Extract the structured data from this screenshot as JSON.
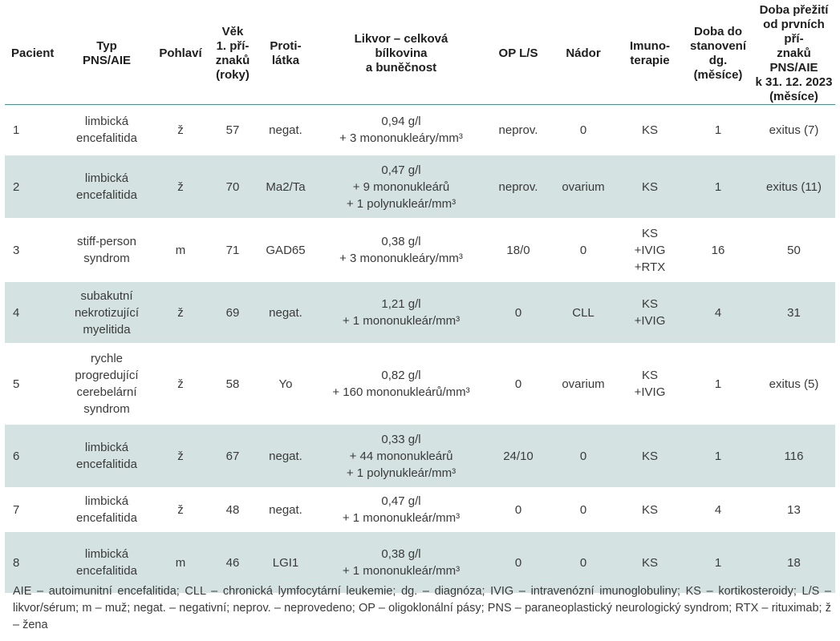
{
  "headers": [
    {
      "key": "patient",
      "lines": [
        "Pacient"
      ]
    },
    {
      "key": "type",
      "lines": [
        "Typ",
        "PNS/AIE"
      ]
    },
    {
      "key": "sex",
      "lines": [
        "Pohlaví"
      ]
    },
    {
      "key": "age",
      "lines": [
        "Věk",
        "1. pří-",
        "znaků",
        "(roky)"
      ]
    },
    {
      "key": "antibody",
      "lines": [
        "Proti-",
        "látka"
      ]
    },
    {
      "key": "csf",
      "lines": [
        "Likvor – celková",
        "bílkovina",
        "a buněčnost"
      ]
    },
    {
      "key": "ob",
      "lines": [
        "OP L/S"
      ]
    },
    {
      "key": "tumor",
      "lines": [
        "Nádor"
      ]
    },
    {
      "key": "immuno",
      "lines": [
        "Imuno-",
        "terapie"
      ]
    },
    {
      "key": "time_dg",
      "lines": [
        "Doba do",
        "stanovení",
        "dg.",
        "(měsíce)"
      ]
    },
    {
      "key": "survival",
      "lines": [
        "Doba přežití",
        "od prvních pří-",
        "znaků PNS/AIE",
        "k 31. 12. 2023",
        "(měsíce)"
      ]
    }
  ],
  "rows": [
    {
      "patient": "1",
      "type": [
        "limbická",
        "encefalitida"
      ],
      "sex": "ž",
      "age": "57",
      "antibody": "negat.",
      "csf": [
        "0,94 g/l",
        "+ 3 mononukleáry/mm³"
      ],
      "ob": "neprov.",
      "tumor": "0",
      "immuno": [
        "KS"
      ],
      "time_dg": "1",
      "survival": "exitus (7)"
    },
    {
      "patient": "2",
      "type": [
        "limbická",
        "encefalitida"
      ],
      "sex": "ž",
      "age": "70",
      "antibody": "Ma2/Ta",
      "csf": [
        "0,47 g/l",
        "+ 9 mononukleárů",
        "+ 1 polynukleár/mm³"
      ],
      "ob": "neprov.",
      "tumor": "ovarium",
      "immuno": [
        "KS"
      ],
      "time_dg": "1",
      "survival": "exitus (11)"
    },
    {
      "patient": "3",
      "type": [
        "stiff-person",
        "syndrom"
      ],
      "sex": "m",
      "age": "71",
      "antibody": "GAD65",
      "csf": [
        "0,38 g/l",
        "+ 3 mononukleáry/mm³"
      ],
      "ob": "18/0",
      "tumor": "0",
      "immuno": [
        "KS",
        "+IVIG",
        "+RTX"
      ],
      "time_dg": "16",
      "survival": "50"
    },
    {
      "patient": "4",
      "type": [
        "subakutní",
        "nekrotizující",
        "myelitida"
      ],
      "sex": "ž",
      "age": "69",
      "antibody": "negat.",
      "csf": [
        "1,21 g/l",
        "+ 1 mononukleár/mm³"
      ],
      "ob": "0",
      "tumor": "CLL",
      "immuno": [
        "KS",
        "+IVIG"
      ],
      "time_dg": "4",
      "survival": "31"
    },
    {
      "patient": "5",
      "type": [
        "rychle",
        "progredující",
        "cerebelární",
        "syndrom"
      ],
      "sex": "ž",
      "age": "58",
      "antibody": "Yo",
      "csf": [
        "0,82 g/l",
        "+ 160 mononukleárů/mm³"
      ],
      "ob": "0",
      "tumor": "ovarium",
      "immuno": [
        "KS",
        "+IVIG"
      ],
      "time_dg": "1",
      "survival": "exitus (5)"
    },
    {
      "patient": "6",
      "type": [
        "limbická",
        "encefalitida"
      ],
      "sex": "ž",
      "age": "67",
      "antibody": "negat.",
      "csf": [
        "0,33 g/l",
        "+ 44 mononukleárů",
        "+ 1 polynukleár/mm³"
      ],
      "ob": "24/10",
      "tumor": "0",
      "immuno": [
        "KS"
      ],
      "time_dg": "1",
      "survival": "116"
    },
    {
      "patient": "7",
      "type": [
        "limbická",
        "encefalitida"
      ],
      "sex": "ž",
      "age": "48",
      "antibody": "negat.",
      "csf": [
        "0,47 g/l",
        "+ 1 mononukleár/mm³"
      ],
      "ob": "0",
      "tumor": "0",
      "immuno": [
        "KS"
      ],
      "time_dg": "4",
      "survival": "13"
    },
    {
      "patient": "8",
      "type": [
        "limbická",
        "encefalitida"
      ],
      "sex": "m",
      "age": "46",
      "antibody": "LGI1",
      "csf": [
        "0,38 g/l",
        "+ 1 mononukleár/mm³"
      ],
      "ob": "0",
      "tumor": "0",
      "immuno": [
        "KS"
      ],
      "time_dg": "1",
      "survival": "18"
    }
  ],
  "footnote": "AIE – autoimunitní encefalitida; CLL – chronická lymfocytární leukemie; dg. – diagnóza; IVIG – intravenózní imunoglobuliny; KS – kortikosteroidy; L/S – likvor/sérum; m – muž; negat. – negativní; neprov. – neprovedeno; OP – oligoklonální pásy; PNS – paraneoplastický neurologický syndrom; RTX – rituximab; ž – žena",
  "colors": {
    "header_rule": "#4d8f8a",
    "shade_row": "#d4e3e2",
    "text": "#3a3a3a"
  }
}
